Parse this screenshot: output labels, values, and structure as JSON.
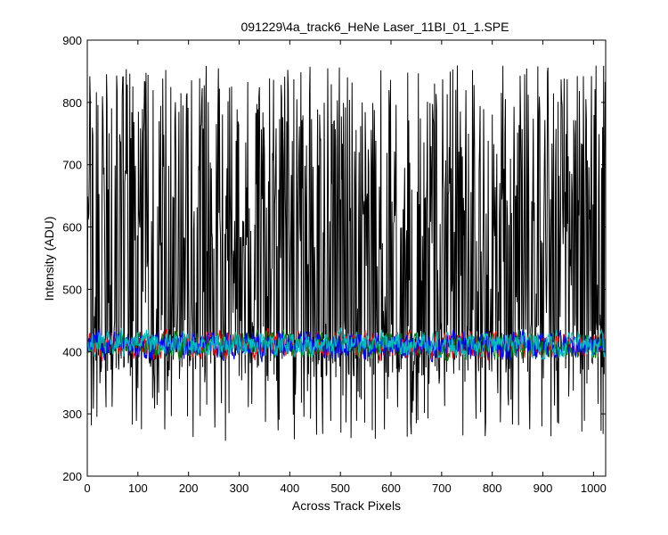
{
  "chart_data": {
    "type": "line",
    "title": "091229\\4a_track6_HeNe Laser_11BI_01_1.SPE",
    "xlabel": "Across Track Pixels",
    "ylabel": "Intensity (ADU)",
    "xlim": [
      0,
      1024
    ],
    "ylim": [
      200,
      900
    ],
    "xticks": [
      0,
      100,
      200,
      300,
      400,
      500,
      600,
      700,
      800,
      900,
      1000
    ],
    "yticks": [
      200,
      300,
      400,
      500,
      600,
      700,
      800,
      900
    ],
    "grid": false,
    "legend": "none",
    "n_points": 1024,
    "series": [
      {
        "color": "#000000",
        "baseline": 400,
        "range": [
          255,
          860
        ],
        "style": "spiky"
      },
      {
        "color": "#ff0000",
        "baseline": 410,
        "range": [
          380,
          455
        ],
        "style": "noise"
      },
      {
        "color": "#008000",
        "baseline": 410,
        "range": [
          380,
          450
        ],
        "style": "noise"
      },
      {
        "color": "#0000ff",
        "baseline": 410,
        "range": [
          380,
          455
        ],
        "style": "noise"
      },
      {
        "color": "#00bfbf",
        "baseline": 412,
        "range": [
          375,
          445
        ],
        "style": "noise"
      }
    ]
  }
}
